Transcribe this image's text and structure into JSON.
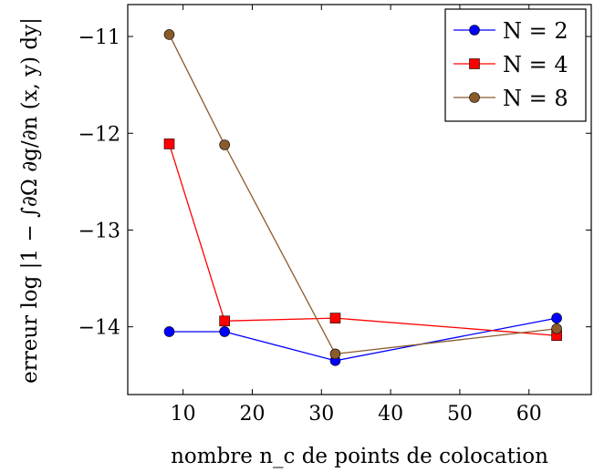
{
  "chart_data": {
    "type": "line",
    "title": "",
    "xlabel": "nombre n_c de points de colocation",
    "ylabel": "erreur log |1 − ∫∂Ω ∂g/∂n (x, y) dy|",
    "xlim": [
      2,
      69
    ],
    "ylim": [
      -14.7,
      -10.67
    ],
    "xticks": [
      10,
      20,
      30,
      40,
      50,
      60
    ],
    "yticks": [
      -11,
      -12,
      -13,
      -14
    ],
    "xtick_labels": [
      "10",
      "20",
      "30",
      "40",
      "50",
      "60"
    ],
    "ytick_labels": [
      "−11",
      "−12",
      "−13",
      "−14"
    ],
    "grid": false,
    "legend_position": "top-right",
    "x": [
      8,
      16,
      32,
      64
    ],
    "series": [
      {
        "name": "N = 2",
        "values": [
          -14.05,
          -14.05,
          -14.35,
          -13.91
        ],
        "color": "#0000ff",
        "marker": "circle"
      },
      {
        "name": "N = 4",
        "values": [
          -12.11,
          -13.94,
          -13.91,
          -14.09
        ],
        "color": "#ff0000",
        "marker": "square"
      },
      {
        "name": "N = 8",
        "values": [
          -10.98,
          -12.12,
          -14.28,
          -14.02
        ],
        "color": "#8b5a2b",
        "marker": "circle"
      }
    ]
  }
}
